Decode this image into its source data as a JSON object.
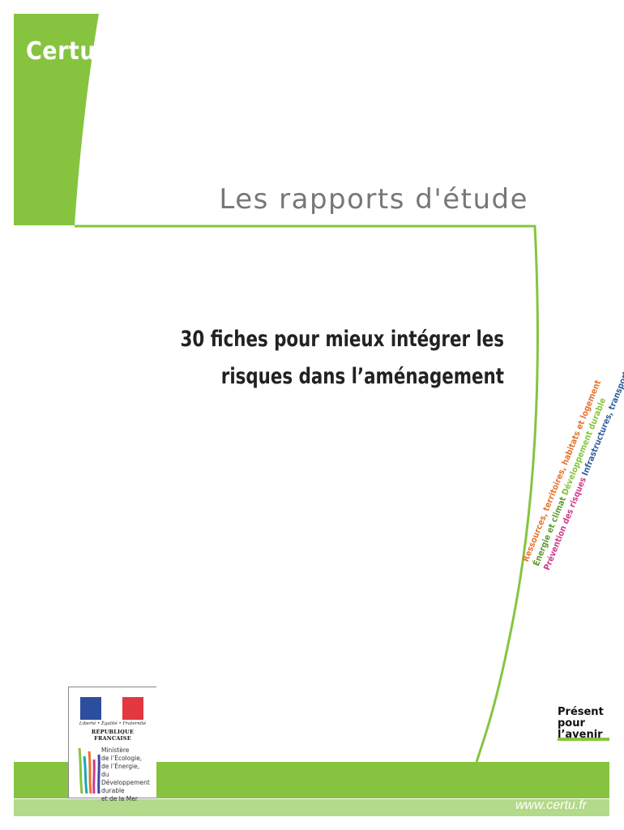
{
  "colors": {
    "green": "#86c440",
    "light_green": "#b3d98a",
    "title_gray": "#777777"
  },
  "header": {
    "brand": "Certu",
    "series": "Les rapports d'étude"
  },
  "title": {
    "line1": "30 fiches pour mieux intégrer les",
    "line2": "risques dans l’aménagement"
  },
  "themes": [
    {
      "text": "Ressources, territoires, habitats et logement",
      "color": "#e8732a"
    },
    {
      "text": "Énergie et climat",
      "color": "#5e9a2d"
    },
    {
      "text": "Développement durable",
      "color": "#86c440"
    },
    {
      "text": "Prévention des risques",
      "color": "#d23a8a"
    },
    {
      "text": "Infrastructures, transports et mer",
      "color": "#2f5e9e"
    }
  ],
  "motto": {
    "line1": "Présent",
    "line2": "pour",
    "line3": "l’avenir"
  },
  "republique": {
    "motto": "Liberté • Égalité • Fraternité",
    "name": "RÉPUBLIQUE FRANÇAISE"
  },
  "ministry": {
    "lines": [
      "Ministère",
      "de l’Écologie,",
      "de l’Énergie,",
      "du Développement",
      "durable",
      "et de la Mer"
    ]
  },
  "footer": {
    "url": "www.certu.fr"
  }
}
